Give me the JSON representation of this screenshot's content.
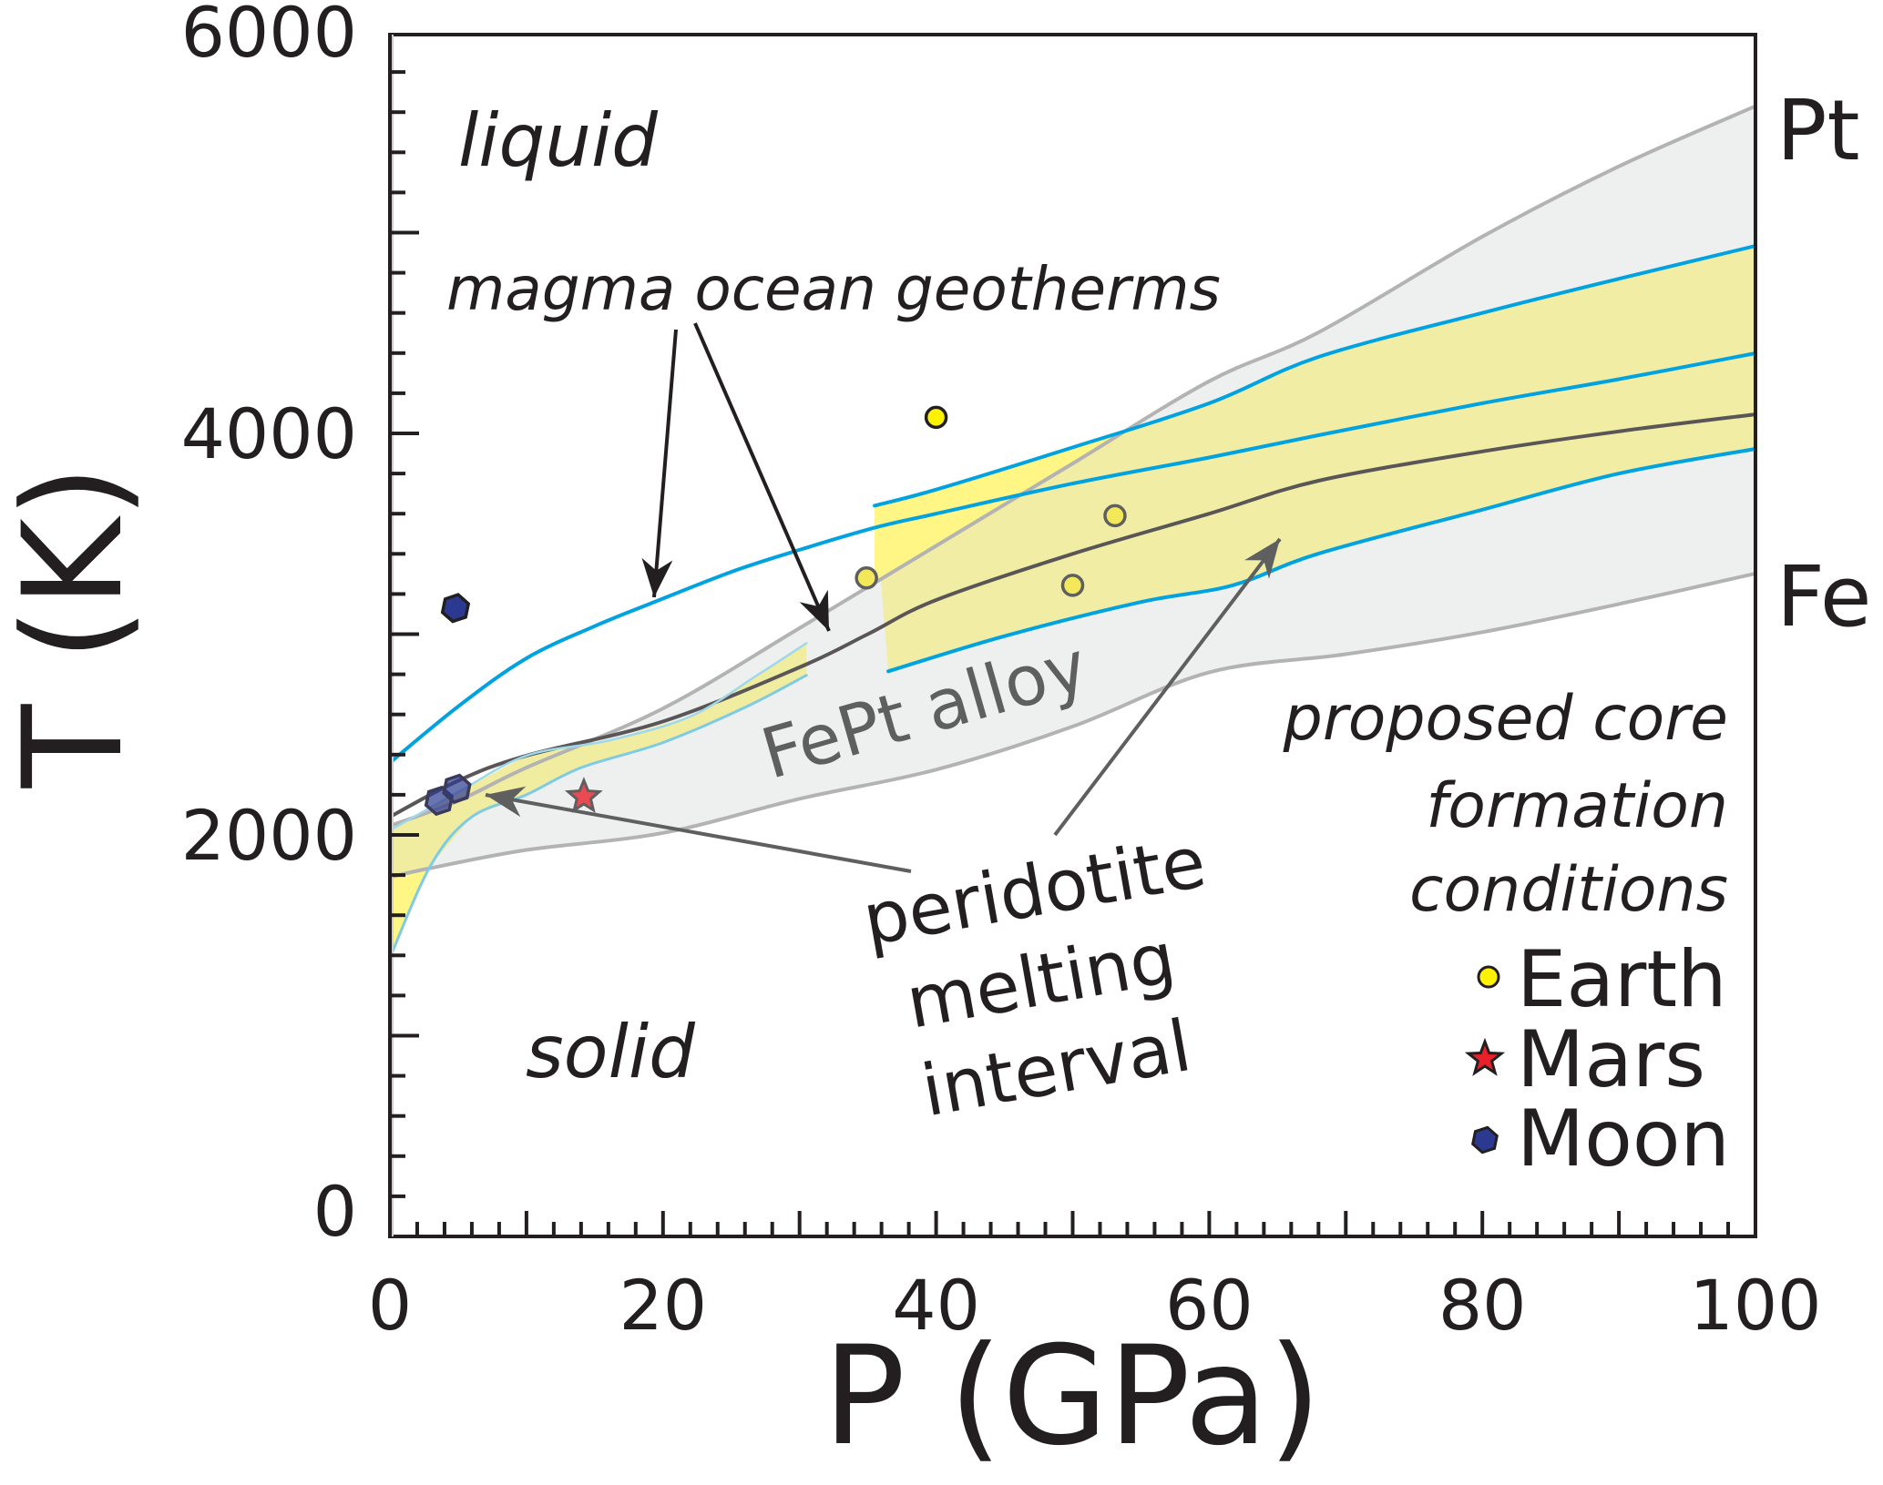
{
  "chart_data": {
    "type": "line",
    "title": "",
    "xlabel": "P (GPa)",
    "ylabel": "T (K)",
    "xlim": [
      0,
      100
    ],
    "ylim": [
      0,
      6000
    ],
    "x_ticks": {
      "major_step": 10,
      "minor_step": 2,
      "labels": [
        "0",
        "20",
        "40",
        "60",
        "80",
        "100"
      ],
      "label_values": [
        0,
        20,
        40,
        60,
        80,
        100
      ]
    },
    "y_ticks": {
      "major_step": 1000,
      "minor_step": 200,
      "labels": [
        "0",
        "2000",
        "4000",
        "6000"
      ],
      "label_values": [
        0,
        2000,
        4000,
        6000
      ]
    },
    "grid": false,
    "colors": {
      "geotherm_blue": "#00a3e0",
      "fe_pt_line": "#b3b3b3",
      "fept_fill": "#eef0ef",
      "yellow_fill": "#f0eca0",
      "yellow_bright": "#fff685",
      "dark_geotherm": "#5a5657",
      "earth": "#fff200",
      "mars": "#e8202a",
      "moon": "#2b3990",
      "arrow_gray": "#5f5f5f"
    },
    "series": [
      {
        "name": "Pt melting curve",
        "label": "Pt",
        "kind": "melting",
        "points": [
          [
            0,
            2045
          ],
          [
            5,
            2170
          ],
          [
            10,
            2335
          ],
          [
            20,
            2630
          ],
          [
            30,
            3030
          ],
          [
            40,
            3440
          ],
          [
            50,
            3850
          ],
          [
            60,
            4260
          ],
          [
            68,
            4503
          ],
          [
            80,
            4980
          ],
          [
            90,
            5330
          ],
          [
            100,
            5630
          ]
        ]
      },
      {
        "name": "Fe melting curve",
        "label": "Fe",
        "kind": "melting",
        "points": [
          [
            0,
            1790
          ],
          [
            3,
            1835
          ],
          [
            10,
            1925
          ],
          [
            20,
            2010
          ],
          [
            30,
            2180
          ],
          [
            40,
            2325
          ],
          [
            50,
            2540
          ],
          [
            60,
            2810
          ],
          [
            70,
            2900
          ],
          [
            80,
            3010
          ],
          [
            90,
            3150
          ],
          [
            100,
            3302
          ]
        ]
      },
      {
        "name": "Hot magma ocean geotherm",
        "kind": "geotherm",
        "points": [
          [
            0,
            2360
          ],
          [
            5,
            2640
          ],
          [
            10,
            2880
          ],
          [
            15,
            3040
          ],
          [
            19,
            3150
          ],
          [
            25,
            3310
          ],
          [
            30,
            3420
          ],
          [
            35.5,
            3530
          ],
          [
            40,
            3600
          ],
          [
            50,
            3750
          ],
          [
            60,
            3880
          ],
          [
            68,
            3991
          ],
          [
            80,
            4150
          ],
          [
            90,
            4270
          ],
          [
            100,
            4399
          ]
        ]
      },
      {
        "name": "Core formation band upper edge",
        "kind": "geotherm",
        "points": [
          [
            35.5,
            3640
          ],
          [
            40,
            3720
          ],
          [
            50,
            3930
          ],
          [
            60,
            4150
          ],
          [
            68,
            4381
          ],
          [
            80,
            4600
          ],
          [
            90,
            4770
          ],
          [
            100,
            4934
          ]
        ]
      },
      {
        "name": "Core formation band lower edge",
        "kind": "geotherm",
        "points": [
          [
            36.5,
            2815
          ],
          [
            45,
            2990
          ],
          [
            55,
            3160
          ],
          [
            61.7,
            3243
          ],
          [
            68,
            3401
          ],
          [
            80,
            3620
          ],
          [
            90,
            3800
          ],
          [
            100,
            3923
          ]
        ]
      },
      {
        "name": "Magma ocean geotherm (dark)",
        "kind": "geotherm",
        "points": [
          [
            0,
            2090
          ],
          [
            5,
            2270
          ],
          [
            10,
            2395
          ],
          [
            20,
            2565
          ],
          [
            30,
            2835
          ],
          [
            35,
            3000
          ],
          [
            40,
            3170
          ],
          [
            50,
            3400
          ],
          [
            60,
            3600
          ],
          [
            68,
            3764
          ],
          [
            80,
            3910
          ],
          [
            90,
            4010
          ],
          [
            100,
            4095
          ]
        ]
      },
      {
        "name": "Peridotite liquidus",
        "kind": "peridotite",
        "points": [
          [
            0,
            2022
          ],
          [
            5,
            2213
          ],
          [
            10,
            2395
          ],
          [
            16,
            2470
          ],
          [
            22,
            2590
          ],
          [
            27,
            2800
          ],
          [
            30.5,
            2955
          ]
        ]
      },
      {
        "name": "Peridotite solidus",
        "kind": "peridotite",
        "points": [
          [
            0,
            1388
          ],
          [
            3,
            1850
          ],
          [
            6,
            2090
          ],
          [
            10,
            2200
          ],
          [
            14,
            2335
          ],
          [
            20,
            2460
          ],
          [
            26,
            2635
          ],
          [
            30.5,
            2795
          ]
        ]
      }
    ],
    "scatter": [
      {
        "name": "Earth",
        "marker": "circle",
        "points": [
          [
            40.0,
            4080
          ],
          [
            34.9,
            3280
          ],
          [
            53.1,
            3590
          ],
          [
            50.0,
            3243
          ]
        ]
      },
      {
        "name": "Mars",
        "marker": "star",
        "points": [
          [
            14.2,
            2190
          ]
        ]
      },
      {
        "name": "Moon",
        "marker": "hexagon",
        "points": [
          [
            4.8,
            3130
          ],
          [
            3.6,
            2170
          ],
          [
            4.9,
            2230
          ]
        ]
      }
    ],
    "annotations": [
      {
        "id": "liquid",
        "text": "liquid",
        "italic": true
      },
      {
        "id": "solid",
        "text": "solid",
        "italic": true
      },
      {
        "id": "geotherms",
        "text": "magma ocean geotherms",
        "italic": true
      },
      {
        "id": "fept",
        "text": "FePt alloy",
        "italic": false
      },
      {
        "id": "peridotite",
        "lines": [
          "peridotite",
          "melting",
          "interval"
        ]
      },
      {
        "id": "core",
        "lines": [
          "proposed core",
          "formation",
          "conditions"
        ],
        "italic": true
      }
    ],
    "legend": {
      "placement": "bottom-right",
      "entries": [
        {
          "label": "Earth",
          "marker": "circle"
        },
        {
          "label": "Mars",
          "marker": "star"
        },
        {
          "label": "Moon",
          "marker": "hexagon"
        }
      ]
    }
  }
}
